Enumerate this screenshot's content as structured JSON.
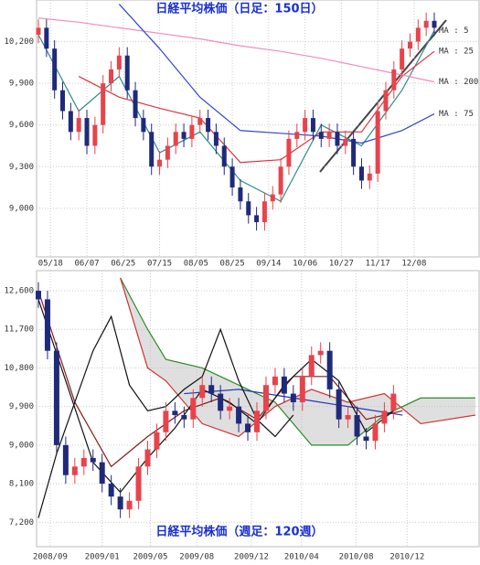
{
  "chart_data": [
    {
      "type": "candlestick",
      "title": "日経平均株価（日足：150日）",
      "xlim": [
        0,
        49
      ],
      "ylim": [
        8650,
        10500
      ],
      "yticks": [
        {
          "value": 9000,
          "label": "9,000"
        },
        {
          "value": 9300,
          "label": "9,300"
        },
        {
          "value": 9600,
          "label": "9,600"
        },
        {
          "value": 9900,
          "label": "9,900"
        },
        {
          "value": 10200,
          "label": "10,200"
        }
      ],
      "xticks": [
        {
          "value": 1.5,
          "label": "05/18"
        },
        {
          "value": 6,
          "label": "06/07"
        },
        {
          "value": 10.5,
          "label": "06/25"
        },
        {
          "value": 15,
          "label": "07/15"
        },
        {
          "value": 19.5,
          "label": "08/05"
        },
        {
          "value": 24,
          "label": "08/25"
        },
        {
          "value": 28.5,
          "label": "09/14"
        },
        {
          "value": 33,
          "label": "10/06"
        },
        {
          "value": 37.5,
          "label": "10/27"
        },
        {
          "value": 42,
          "label": "11/17"
        },
        {
          "value": 46.5,
          "label": "12/08"
        }
      ],
      "grid": true,
      "up_color": "#e8434b",
      "down_color": "#1f2a7a",
      "open": [
        10250,
        10300,
        10150,
        9850,
        9700,
        9550,
        9650,
        9450,
        9600,
        9900,
        10000,
        10100,
        9850,
        9650,
        9550,
        9300,
        9350,
        9450,
        9550,
        9500,
        9600,
        9650,
        9550,
        9450,
        9300,
        9150,
        9050,
        8950,
        8900,
        9050,
        9100,
        9300,
        9500,
        9550,
        9650,
        9550,
        9500,
        9550,
        9450,
        9500,
        9300,
        9200,
        9250,
        9700,
        9850,
        10000,
        10150,
        10200,
        10300,
        10350
      ],
      "high": [
        10360,
        10360,
        10210,
        9910,
        9760,
        9710,
        9710,
        9660,
        9960,
        10060,
        10160,
        10160,
        9910,
        9710,
        9610,
        9410,
        9510,
        9610,
        9610,
        9660,
        9710,
        9710,
        9610,
        9510,
        9360,
        9210,
        9110,
        9010,
        9110,
        9160,
        9360,
        9560,
        9610,
        9710,
        9710,
        9610,
        9610,
        9610,
        9560,
        9560,
        9360,
        9310,
        9760,
        9910,
        10060,
        10210,
        10260,
        10360,
        10410,
        10410
      ],
      "low": [
        10190,
        10090,
        9790,
        9640,
        9490,
        9490,
        9390,
        9390,
        9540,
        9840,
        9940,
        9790,
        9590,
        9490,
        9240,
        9240,
        9290,
        9390,
        9440,
        9440,
        9540,
        9490,
        9390,
        9240,
        9090,
        8990,
        8890,
        8840,
        8840,
        8990,
        9040,
        9240,
        9440,
        9490,
        9490,
        9440,
        9440,
        9390,
        9390,
        9240,
        9140,
        9140,
        9190,
        9640,
        9790,
        9940,
        10090,
        10140,
        10240,
        10240
      ],
      "close": [
        10300,
        10150,
        9850,
        9700,
        9550,
        9650,
        9450,
        9600,
        9900,
        10000,
        10100,
        9850,
        9650,
        9550,
        9300,
        9350,
        9450,
        9550,
        9500,
        9600,
        9650,
        9550,
        9450,
        9300,
        9150,
        9050,
        8950,
        8900,
        9050,
        9100,
        9300,
        9500,
        9550,
        9650,
        9550,
        9500,
        9550,
        9450,
        9500,
        9300,
        9200,
        9250,
        9700,
        9850,
        10000,
        10150,
        10200,
        10300,
        10350,
        10300
      ],
      "series": [
        {
          "name": "MA : 5",
          "color": "#2e8b8b",
          "x": [
            0,
            5,
            10,
            15,
            20,
            25,
            30,
            35,
            40,
            45,
            49
          ],
          "values": [
            10250,
            9700,
            9950,
            9400,
            9550,
            9200,
            9050,
            9600,
            9450,
            9850,
            10280
          ]
        },
        {
          "name": "MA : 25",
          "color": "#e0333a",
          "x": [
            0,
            5,
            10,
            15,
            20,
            25,
            30,
            35,
            40,
            45,
            49
          ],
          "values": [
            null,
            9950,
            9800,
            9720,
            9650,
            9330,
            9350,
            9550,
            9550,
            9950,
            10130
          ]
        },
        {
          "name": "MA : 200",
          "color": "#f08bc0",
          "x": [
            0,
            5,
            10,
            15,
            20,
            25,
            30,
            35,
            40,
            45,
            49
          ],
          "values": [
            10370,
            10340,
            10300,
            10260,
            10220,
            10170,
            10130,
            10080,
            10020,
            9960,
            9910
          ]
        },
        {
          "name": "MA : 75",
          "color": "#3344cc",
          "x": [
            0,
            5,
            10,
            15,
            20,
            25,
            30,
            35,
            40,
            45,
            49
          ],
          "values": [
            null,
            null,
            10470,
            10150,
            9800,
            9560,
            9540,
            9520,
            9470,
            9560,
            9680
          ]
        }
      ]
    },
    {
      "type": "ichimoku",
      "title": "日経平均株価（週足：120週）",
      "xlim": [
        0,
        48
      ],
      "ylim": [
        6630,
        13070
      ],
      "yticks": [
        {
          "value": 7200,
          "label": "7,200"
        },
        {
          "value": 8100,
          "label": "8,100"
        },
        {
          "value": 9000,
          "label": "9,000"
        },
        {
          "value": 9900,
          "label": "9,900"
        },
        {
          "value": 10800,
          "label": "10,800"
        },
        {
          "value": 11700,
          "label": "11,700"
        },
        {
          "value": 12600,
          "label": "12,600"
        }
      ],
      "xticks": [
        {
          "value": 1.3,
          "label": "2008/09"
        },
        {
          "value": 7,
          "label": "2009/01"
        },
        {
          "value": 12.3,
          "label": "2009/05"
        },
        {
          "value": 17.4,
          "label": "2009/08"
        },
        {
          "value": 23.4,
          "label": "2009/12"
        },
        {
          "value": 28.9,
          "label": "2010/04"
        },
        {
          "value": 34.9,
          "label": "2010/08"
        },
        {
          "value": 40.5,
          "label": "2010/12"
        }
      ],
      "grid": true,
      "up_color": "#e8434b",
      "down_color": "#1f2a7a",
      "cloud_color": "#b8b8b8",
      "open": [
        12600,
        12400,
        11200,
        9000,
        8300,
        8500,
        8700,
        8600,
        8100,
        7800,
        7500,
        7700,
        8500,
        8900,
        9300,
        9800,
        9700,
        9600,
        10100,
        10400,
        10200,
        9800,
        9900,
        9500,
        9300,
        9800,
        10400,
        10600,
        10200,
        10000,
        10600,
        11100,
        11200,
        10300,
        9600,
        9700,
        9200,
        9100,
        9500,
        9800
      ],
      "high": [
        12800,
        12600,
        11400,
        9200,
        8700,
        8900,
        8900,
        8800,
        8300,
        8000,
        7900,
        8700,
        9100,
        9500,
        10000,
        10000,
        9900,
        10300,
        10600,
        10600,
        10400,
        10100,
        10100,
        9700,
        10000,
        10600,
        10800,
        10800,
        10400,
        10800,
        11300,
        11400,
        11400,
        10500,
        9900,
        9900,
        9400,
        9700,
        10000,
        10400
      ],
      "low": [
        12200,
        11000,
        8800,
        8100,
        8100,
        8300,
        8400,
        7900,
        7600,
        7300,
        7300,
        7500,
        8300,
        8700,
        9100,
        9500,
        9400,
        9400,
        9900,
        10000,
        9600,
        9600,
        9300,
        9100,
        9100,
        9600,
        10200,
        10000,
        9800,
        9800,
        10400,
        10900,
        10100,
        9400,
        9400,
        9000,
        8900,
        8900,
        9300,
        9600
      ],
      "close": [
        12400,
        11200,
        9000,
        8300,
        8500,
        8700,
        8600,
        8100,
        7800,
        7500,
        7700,
        8500,
        8900,
        9300,
        9800,
        9700,
        9600,
        10100,
        10400,
        10200,
        9800,
        9900,
        9500,
        9300,
        9800,
        10400,
        10600,
        10200,
        10000,
        10600,
        11100,
        11200,
        10300,
        9600,
        9700,
        9200,
        9100,
        9500,
        9800,
        10200
      ],
      "series": [
        {
          "color": "#2a8a2a",
          "x": [
            9,
            12,
            14,
            18,
            22,
            26,
            30,
            34,
            38,
            42,
            48
          ],
          "values": [
            12900,
            11700,
            11000,
            10800,
            10400,
            10000,
            9000,
            9000,
            9700,
            10100,
            10100
          ]
        },
        {
          "color": "#d03030",
          "x": [
            9,
            12,
            14,
            18,
            22,
            26,
            30,
            34,
            38,
            42,
            48
          ],
          "values": [
            12900,
            10800,
            10500,
            9500,
            9200,
            9900,
            10300,
            10000,
            10200,
            9500,
            9700
          ]
        },
        {
          "color": "#8b1a1a",
          "x": [
            0,
            4,
            8,
            12,
            16,
            20,
            24,
            28,
            32,
            36,
            40
          ],
          "values": [
            12600,
            10000,
            8500,
            9200,
            9800,
            10100,
            9600,
            10600,
            10600,
            9600,
            9800
          ]
        },
        {
          "color": "#2233bb",
          "x": [
            16,
            22,
            28,
            34,
            40
          ],
          "values": [
            10200,
            10300,
            10100,
            9900,
            9700
          ]
        },
        {
          "color": "#111111",
          "x": [
            0,
            3,
            6,
            9,
            12,
            15,
            18,
            21,
            24,
            27,
            30,
            33,
            36,
            39
          ],
          "values": [
            12400,
            10500,
            8600,
            7900,
            8700,
            9400,
            10300,
            10000,
            9500,
            10400,
            11000,
            10500,
            9300,
            9800
          ]
        },
        {
          "color": "#111111",
          "x": [
            0,
            2,
            4,
            6,
            8,
            10,
            12,
            14,
            16,
            18,
            20,
            22,
            24,
            26,
            28
          ],
          "values": [
            7300,
            8800,
            10000,
            11200,
            12000,
            10400,
            9800,
            9900,
            10300,
            10600,
            11700,
            10500,
            9600,
            9200,
            9700
          ]
        }
      ]
    }
  ]
}
